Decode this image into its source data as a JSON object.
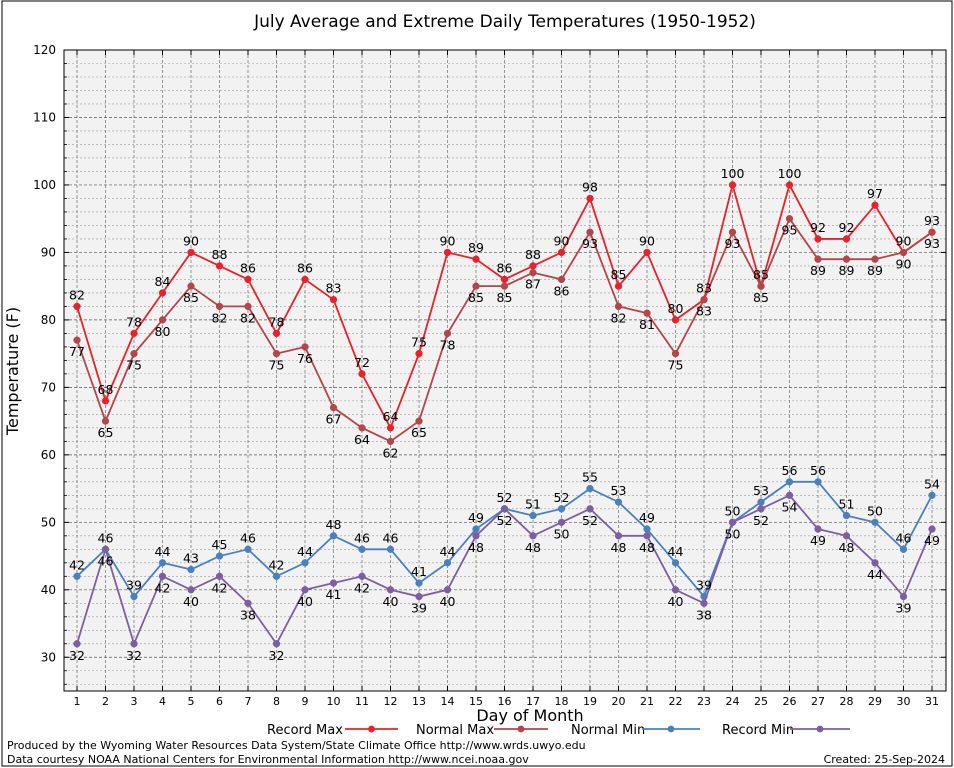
{
  "chart_data": {
    "type": "line",
    "title": "July Average and Extreme Daily Temperatures (1950-1952)",
    "xlabel": "Day of Month",
    "ylabel": "Temperature (F)",
    "ylim": [
      25,
      120
    ],
    "yticks": [
      30,
      40,
      50,
      60,
      70,
      80,
      90,
      100,
      110,
      120
    ],
    "grid": true,
    "legend_position": "bottom",
    "x": [
      1,
      2,
      3,
      4,
      5,
      6,
      7,
      8,
      9,
      10,
      11,
      12,
      13,
      14,
      15,
      16,
      17,
      18,
      19,
      20,
      21,
      22,
      23,
      24,
      25,
      26,
      27,
      28,
      29,
      30,
      31
    ],
    "series": [
      {
        "name": "Record Max",
        "color": "#e8222b",
        "values": [
          82,
          68,
          78,
          84,
          90,
          88,
          86,
          78,
          86,
          83,
          72,
          64,
          75,
          90,
          89,
          86,
          88,
          90,
          98,
          85,
          90,
          80,
          83,
          100,
          85,
          100,
          92,
          92,
          97,
          90,
          93
        ]
      },
      {
        "name": "Normal Max",
        "color": "#b5454a",
        "values": [
          77,
          65,
          75,
          80,
          85,
          82,
          82,
          75,
          76,
          67,
          64,
          62,
          65,
          78,
          85,
          85,
          87,
          86,
          93,
          82,
          81,
          75,
          83,
          93,
          85,
          95,
          89,
          89,
          89,
          90,
          93
        ]
      },
      {
        "name": "Normal Min",
        "color": "#4a81bd",
        "values": [
          42,
          46,
          39,
          44,
          43,
          45,
          46,
          42,
          44,
          48,
          46,
          46,
          41,
          44,
          49,
          52,
          51,
          52,
          55,
          53,
          49,
          44,
          39,
          50,
          53,
          56,
          56,
          51,
          50,
          46,
          54
        ]
      },
      {
        "name": "Record Min",
        "color": "#7d5fa1",
        "values": [
          32,
          46,
          32,
          42,
          40,
          42,
          38,
          32,
          40,
          41,
          42,
          40,
          39,
          40,
          48,
          52,
          48,
          50,
          52,
          48,
          48,
          40,
          38,
          50,
          52,
          54,
          49,
          48,
          44,
          39,
          49
        ]
      }
    ]
  },
  "footer": {
    "produced_by": "Produced by the Wyoming Water Resources Data System/State Climate Office http://www.wrds.uwyo.edu",
    "courtesy": "Data courtesy NOAA National Centers for Environmental Information http://www.ncei.noaa.gov",
    "created": "Created:  25-Sep-2024"
  }
}
